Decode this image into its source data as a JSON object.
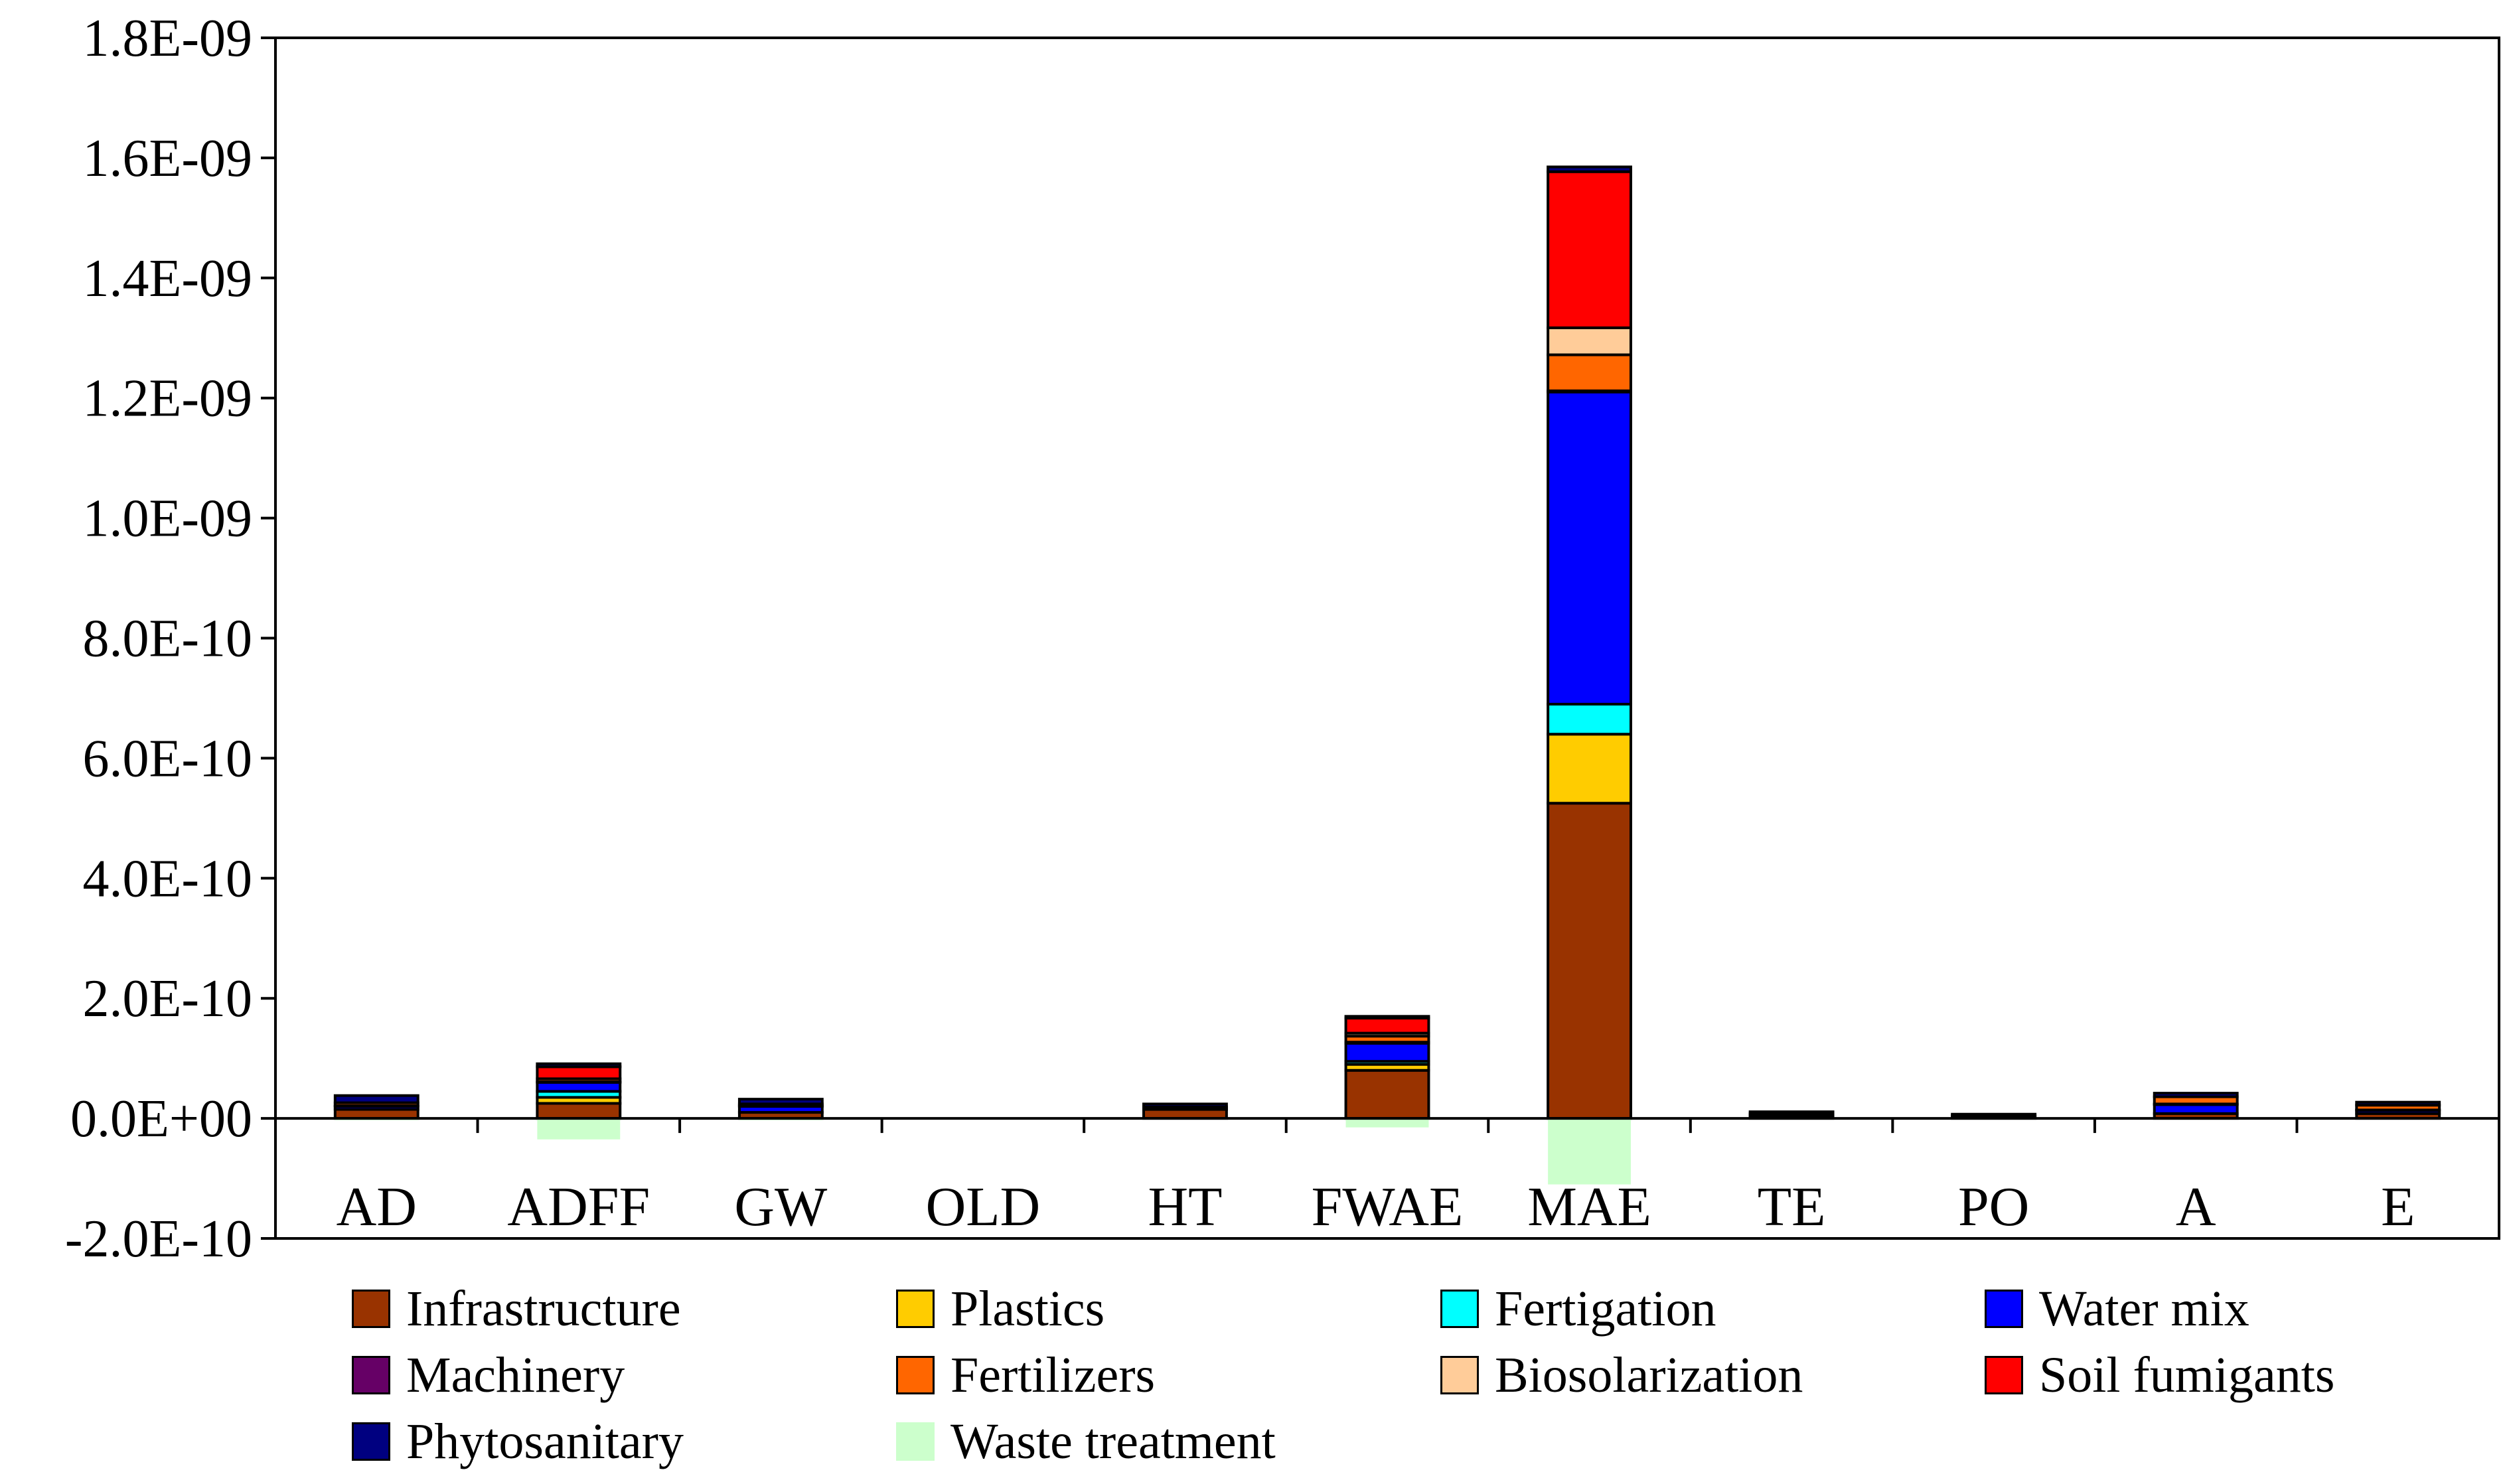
{
  "chart_data": {
    "type": "bar",
    "stacked": true,
    "title": "",
    "xlabel": "",
    "ylabel": "",
    "ylim": [
      -2e-10,
      1.8e-09
    ],
    "yticks": [
      -2e-10,
      0,
      2e-10,
      4e-10,
      6e-10,
      8e-10,
      1e-09,
      1.2e-09,
      1.4e-09,
      1.6e-09,
      1.8e-09
    ],
    "ytick_labels": [
      "-2.0E-10",
      "0.0E+00",
      "2.0E-10",
      "4.0E-10",
      "6.0E-10",
      "8.0E-10",
      "1.0E-09",
      "1.2E-09",
      "1.4E-09",
      "1.6E-09",
      "1.8E-09"
    ],
    "grid": false,
    "legend_position": "bottom",
    "categories": [
      "AD",
      "ADFF",
      "GW",
      "OLD",
      "HT",
      "FWAE",
      "MAE",
      "TE",
      "PO",
      "A",
      "E"
    ],
    "series": [
      {
        "name": "Infrastructure",
        "color": "#993300",
        "values": [
          1.5e-11,
          2.5e-11,
          1e-11,
          0,
          1.5e-11,
          8e-11,
          5.25e-10,
          3e-12,
          3e-12,
          8e-12,
          8e-12
        ]
      },
      {
        "name": "Plastics",
        "color": "#FFCC00",
        "values": [
          0,
          1e-11,
          0,
          0,
          0,
          1e-11,
          1.15e-10,
          0,
          0,
          0,
          0
        ]
      },
      {
        "name": "Fertigation",
        "color": "#00FFFF",
        "values": [
          0,
          1e-11,
          0,
          0,
          0,
          5e-12,
          5e-11,
          0,
          0,
          0,
          0
        ]
      },
      {
        "name": "Water mix",
        "color": "#0000FF",
        "values": [
          5e-12,
          1.5e-11,
          1e-11,
          0,
          0,
          3e-11,
          5.2e-10,
          3e-12,
          0,
          1.5e-11,
          5e-12
        ]
      },
      {
        "name": "Machinery",
        "color": "#660066",
        "values": [
          1e-12,
          1e-12,
          1e-12,
          0,
          1e-12,
          2e-12,
          2e-12,
          0,
          0,
          1e-12,
          1e-12
        ]
      },
      {
        "name": "Fertilizers",
        "color": "#FF6600",
        "values": [
          5e-12,
          5e-12,
          3e-12,
          0,
          3e-12,
          1e-11,
          6e-11,
          2e-12,
          2e-12,
          1.2e-11,
          8e-12
        ]
      },
      {
        "name": "Biosolarization",
        "color": "#FFCC99",
        "values": [
          0,
          0,
          0,
          0,
          0,
          5e-12,
          4.5e-11,
          0,
          0,
          0,
          0
        ]
      },
      {
        "name": "Soil fumigants",
        "color": "#FF0000",
        "values": [
          0,
          2e-11,
          0,
          0,
          0,
          2.5e-11,
          2.6e-10,
          0,
          0,
          0,
          0
        ]
      },
      {
        "name": "Phytosanitary",
        "color": "#000080",
        "values": [
          1.2e-11,
          5e-12,
          8e-12,
          0,
          5e-12,
          3e-12,
          8e-12,
          3e-12,
          2e-12,
          6e-12,
          5e-12
        ]
      },
      {
        "name": "Waste treatment",
        "color": "#CCFFCC",
        "values": [
          -3e-12,
          -3.5e-11,
          -3e-12,
          0,
          0,
          -1.5e-11,
          -1.1e-10,
          0,
          0,
          0,
          0
        ]
      }
    ]
  },
  "legend": [
    {
      "label": "Infrastructure",
      "color": "#993300"
    },
    {
      "label": "Plastics",
      "color": "#FFCC00"
    },
    {
      "label": "Fertigation",
      "color": "#00FFFF"
    },
    {
      "label": "Water mix",
      "color": "#0000FF"
    },
    {
      "label": "Machinery",
      "color": "#660066"
    },
    {
      "label": "Fertilizers",
      "color": "#FF6600"
    },
    {
      "label": "Biosolarization",
      "color": "#FFCC99"
    },
    {
      "label": "Soil fumigants",
      "color": "#FF0000"
    },
    {
      "label": "Phytosanitary",
      "color": "#000080"
    },
    {
      "label": "Waste treatment",
      "color": "#CCFFCC"
    }
  ]
}
